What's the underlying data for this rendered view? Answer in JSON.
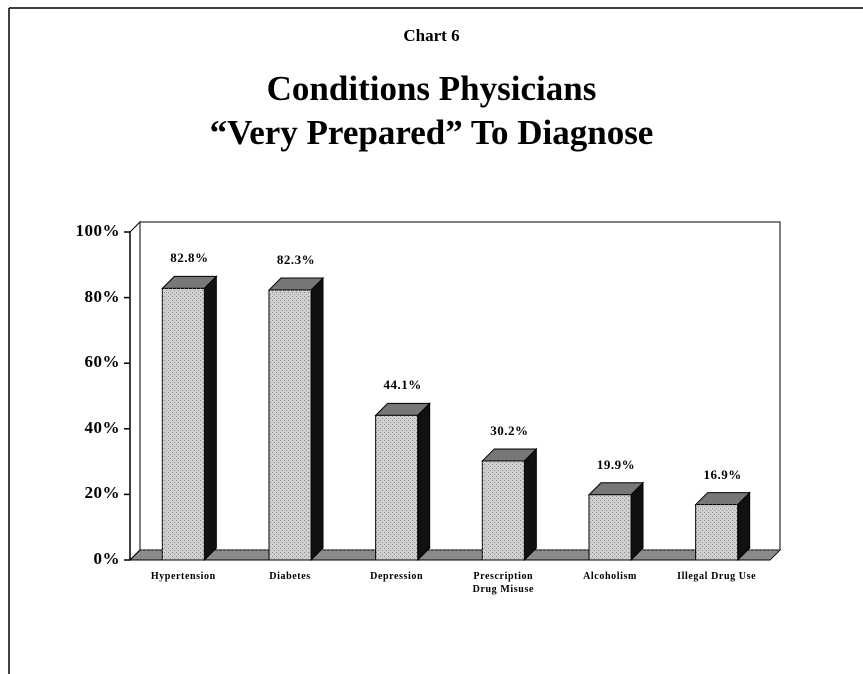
{
  "chart_data": {
    "type": "bar3d",
    "subtitle": "Chart 6",
    "title": [
      "Conditions Physicians",
      "“Very Prepared” To Diagnose"
    ],
    "categories": [
      "Hypertension",
      "Diabetes",
      "Depression",
      "Prescription Drug Misuse",
      "Alcoholism",
      "Illegal Drug Use"
    ],
    "values": [
      82.8,
      82.3,
      44.1,
      30.2,
      19.9,
      16.9
    ],
    "value_labels": [
      "82.8%",
      "82.3%",
      "44.1%",
      "30.2%",
      "19.9%",
      "16.9%"
    ],
    "color": "#cfcfcf",
    "ylim": [
      0,
      100
    ],
    "yticks": [
      {
        "value": 0,
        "label": "0%"
      },
      {
        "value": 20,
        "label": "20%"
      },
      {
        "value": 40,
        "label": "40%"
      },
      {
        "value": 60,
        "label": "60%"
      },
      {
        "value": 80,
        "label": "80%"
      },
      {
        "value": 100,
        "label": "100%"
      }
    ],
    "grid": false
  }
}
